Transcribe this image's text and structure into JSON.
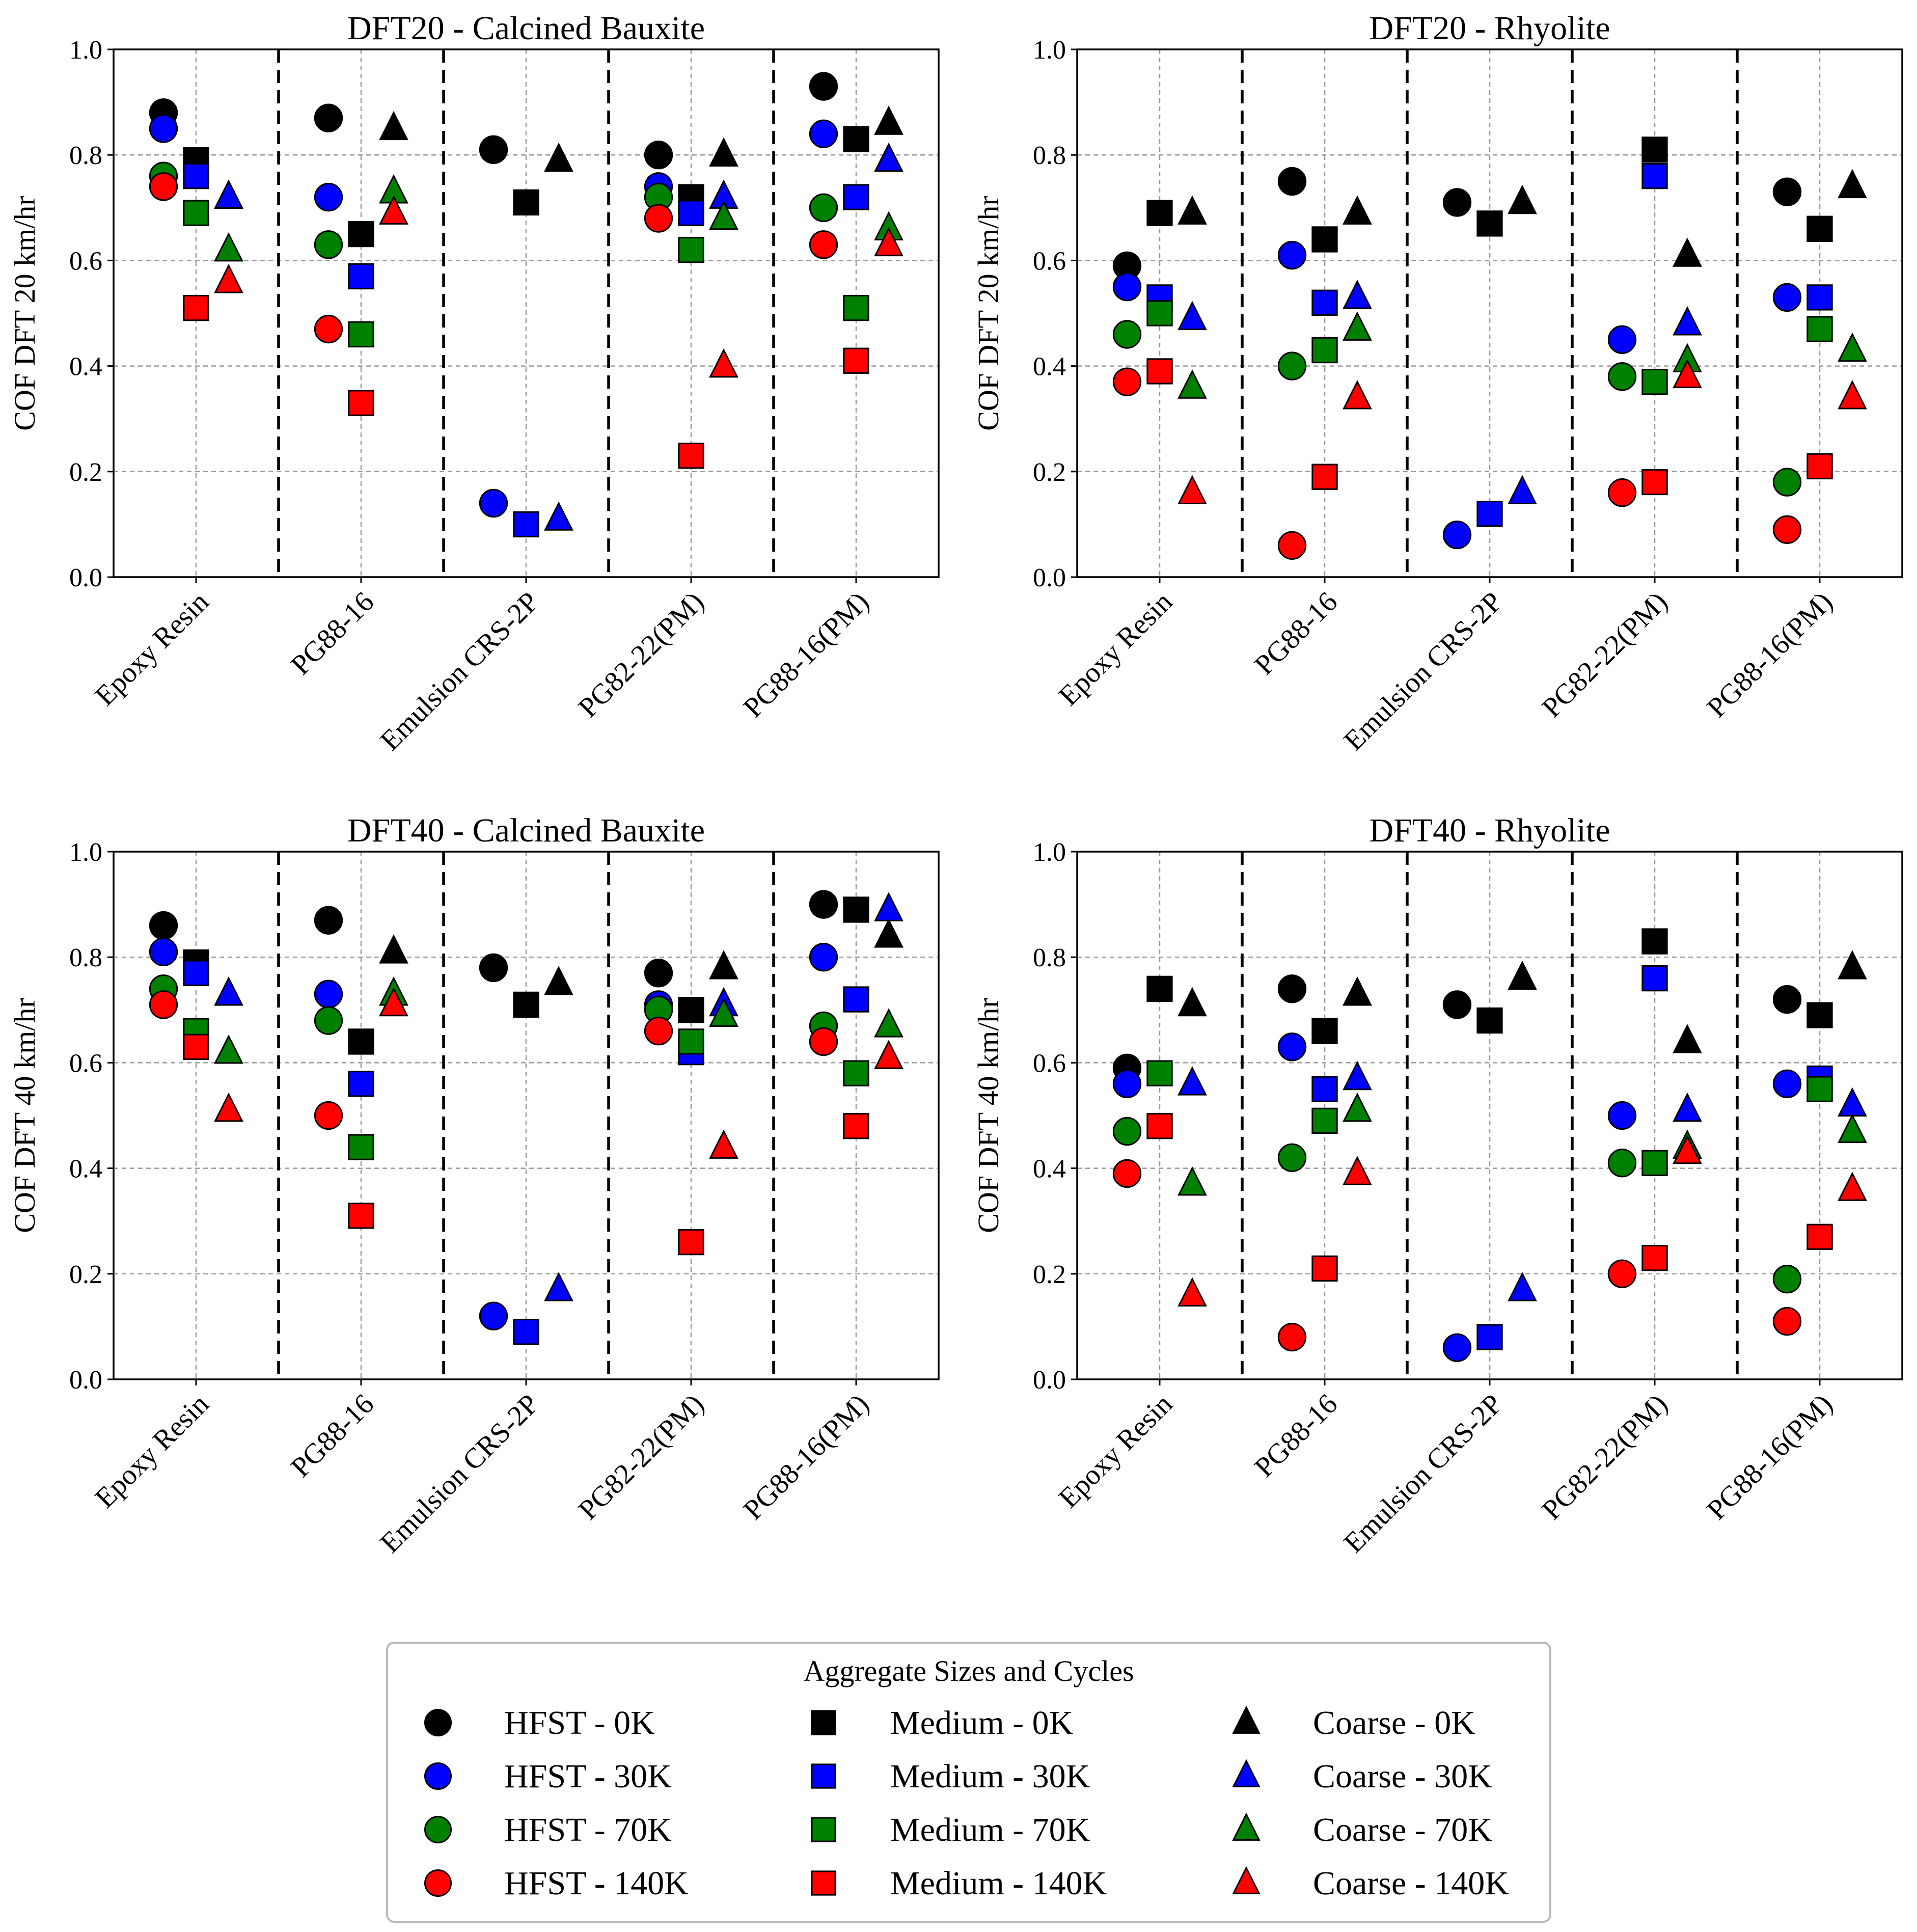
{
  "chart_data": [
    {
      "type": "scatter",
      "title": "DFT20 - Calcined Bauxite",
      "ylabel": "COF DFT 20 km/hr",
      "ylim": [
        0,
        1.0
      ],
      "yticks": [
        "0.0",
        "0.2",
        "0.4",
        "0.6",
        "0.8",
        "1.0"
      ],
      "categories": [
        "Epoxy Resin",
        "PG88-16",
        "Emulsion CRS-2P",
        "PG82-22(PM)",
        "PG88-16(PM)"
      ],
      "series": [
        {
          "name": "HFST - 0K",
          "values": [
            0.88,
            0.87,
            0.81,
            0.8,
            0.93
          ]
        },
        {
          "name": "HFST - 30K",
          "values": [
            0.85,
            0.72,
            0.14,
            0.74,
            0.84
          ]
        },
        {
          "name": "HFST - 70K",
          "values": [
            0.76,
            0.63,
            null,
            0.72,
            0.7
          ]
        },
        {
          "name": "HFST - 140K",
          "values": [
            0.74,
            0.47,
            null,
            0.68,
            0.63
          ]
        },
        {
          "name": "Medium - 0K",
          "values": [
            0.79,
            0.65,
            0.71,
            0.72,
            0.83
          ]
        },
        {
          "name": "Medium - 30K",
          "values": [
            0.76,
            0.57,
            0.1,
            0.69,
            0.72
          ]
        },
        {
          "name": "Medium - 70K",
          "values": [
            0.69,
            0.46,
            null,
            0.62,
            0.51
          ]
        },
        {
          "name": "Medium - 140K",
          "values": [
            0.51,
            0.33,
            null,
            0.23,
            0.41
          ]
        },
        {
          "name": "Coarse - 0K",
          "values": [
            0.72,
            0.85,
            0.79,
            0.8,
            0.86
          ]
        },
        {
          "name": "Coarse - 30K",
          "values": [
            0.72,
            null,
            0.11,
            0.72,
            0.79
          ]
        },
        {
          "name": "Coarse - 70K",
          "values": [
            0.62,
            0.73,
            null,
            0.68,
            0.66
          ]
        },
        {
          "name": "Coarse - 140K",
          "values": [
            0.56,
            0.69,
            null,
            0.4,
            0.63
          ]
        }
      ]
    },
    {
      "type": "scatter",
      "title": "DFT20 - Rhyolite",
      "ylabel": "COF DFT 20 km/hr",
      "ylim": [
        0,
        1.0
      ],
      "yticks": [
        "0.0",
        "0.2",
        "0.4",
        "0.6",
        "0.8",
        "1.0"
      ],
      "categories": [
        "Epoxy Resin",
        "PG88-16",
        "Emulsion CRS-2P",
        "PG82-22(PM)",
        "PG88-16(PM)"
      ],
      "series": [
        {
          "name": "HFST - 0K",
          "values": [
            0.59,
            0.75,
            0.71,
            null,
            0.73
          ]
        },
        {
          "name": "HFST - 30K",
          "values": [
            0.55,
            0.61,
            0.08,
            0.45,
            0.53
          ]
        },
        {
          "name": "HFST - 70K",
          "values": [
            0.46,
            0.4,
            null,
            0.38,
            0.18
          ]
        },
        {
          "name": "HFST - 140K",
          "values": [
            0.37,
            0.06,
            null,
            0.16,
            0.09
          ]
        },
        {
          "name": "Medium - 0K",
          "values": [
            0.69,
            0.64,
            0.67,
            0.81,
            0.66
          ]
        },
        {
          "name": "Medium - 30K",
          "values": [
            0.53,
            0.52,
            0.12,
            0.76,
            0.53
          ]
        },
        {
          "name": "Medium - 70K",
          "values": [
            0.5,
            0.43,
            null,
            0.37,
            0.47
          ]
        },
        {
          "name": "Medium - 140K",
          "values": [
            0.39,
            0.19,
            null,
            0.18,
            0.21
          ]
        },
        {
          "name": "Coarse - 0K",
          "values": [
            0.69,
            0.69,
            0.71,
            0.61,
            0.74
          ]
        },
        {
          "name": "Coarse - 30K",
          "values": [
            0.49,
            0.53,
            0.16,
            0.48,
            null
          ]
        },
        {
          "name": "Coarse - 70K",
          "values": [
            0.36,
            0.47,
            null,
            0.41,
            0.43
          ]
        },
        {
          "name": "Coarse - 140K",
          "values": [
            0.16,
            0.34,
            null,
            0.38,
            0.34
          ]
        }
      ]
    },
    {
      "type": "scatter",
      "title": "DFT40 - Calcined Bauxite",
      "ylabel": "COF DFT 40 km/hr",
      "ylim": [
        0,
        1.0
      ],
      "yticks": [
        "0.0",
        "0.2",
        "0.4",
        "0.6",
        "0.8",
        "1.0"
      ],
      "categories": [
        "Epoxy Resin",
        "PG88-16",
        "Emulsion CRS-2P",
        "PG82-22(PM)",
        "PG88-16(PM)"
      ],
      "series": [
        {
          "name": "HFST - 0K",
          "values": [
            0.86,
            0.87,
            0.78,
            0.77,
            0.9
          ]
        },
        {
          "name": "HFST - 30K",
          "values": [
            0.81,
            0.73,
            0.12,
            0.71,
            0.8
          ]
        },
        {
          "name": "HFST - 70K",
          "values": [
            0.74,
            0.68,
            null,
            0.7,
            0.67
          ]
        },
        {
          "name": "HFST - 140K",
          "values": [
            0.71,
            0.5,
            null,
            0.66,
            0.64
          ]
        },
        {
          "name": "Medium - 0K",
          "values": [
            0.79,
            0.64,
            0.71,
            0.7,
            0.89
          ]
        },
        {
          "name": "Medium - 30K",
          "values": [
            0.77,
            0.56,
            0.09,
            0.62,
            0.72
          ]
        },
        {
          "name": "Medium - 70K",
          "values": [
            0.66,
            0.44,
            null,
            0.64,
            0.58
          ]
        },
        {
          "name": "Medium - 140K",
          "values": [
            0.63,
            0.31,
            null,
            0.26,
            0.48
          ]
        },
        {
          "name": "Coarse - 0K",
          "values": [
            null,
            0.81,
            0.75,
            0.78,
            0.84
          ]
        },
        {
          "name": "Coarse - 30K",
          "values": [
            0.73,
            null,
            0.17,
            0.71,
            0.89
          ]
        },
        {
          "name": "Coarse - 70K",
          "values": [
            0.62,
            0.73,
            null,
            0.69,
            0.67
          ]
        },
        {
          "name": "Coarse - 140K",
          "values": [
            0.51,
            0.71,
            null,
            0.44,
            0.61
          ]
        }
      ]
    },
    {
      "type": "scatter",
      "title": "DFT40 - Rhyolite",
      "ylabel": "COF DFT 40 km/hr",
      "ylim": [
        0,
        1.0
      ],
      "yticks": [
        "0.0",
        "0.2",
        "0.4",
        "0.6",
        "0.8",
        "1.0"
      ],
      "categories": [
        "Epoxy Resin",
        "PG88-16",
        "Emulsion CRS-2P",
        "PG82-22(PM)",
        "PG88-16(PM)"
      ],
      "series": [
        {
          "name": "HFST - 0K",
          "values": [
            0.59,
            0.74,
            0.71,
            null,
            0.72
          ]
        },
        {
          "name": "HFST - 30K",
          "values": [
            0.56,
            0.63,
            0.06,
            0.5,
            0.56
          ]
        },
        {
          "name": "HFST - 70K",
          "values": [
            0.47,
            0.42,
            null,
            0.41,
            0.19
          ]
        },
        {
          "name": "HFST - 140K",
          "values": [
            0.39,
            0.08,
            null,
            0.2,
            0.11
          ]
        },
        {
          "name": "Medium - 0K",
          "values": [
            0.74,
            0.66,
            0.68,
            0.83,
            0.69
          ]
        },
        {
          "name": "Medium - 30K",
          "values": [
            null,
            0.55,
            0.08,
            0.76,
            0.57
          ]
        },
        {
          "name": "Medium - 70K",
          "values": [
            0.58,
            0.49,
            null,
            0.41,
            0.55
          ]
        },
        {
          "name": "Medium - 140K",
          "values": [
            0.48,
            0.21,
            null,
            0.23,
            0.27
          ]
        },
        {
          "name": "Coarse - 0K",
          "values": [
            0.71,
            0.73,
            0.76,
            0.64,
            0.78
          ]
        },
        {
          "name": "Coarse - 30K",
          "values": [
            0.56,
            0.57,
            0.17,
            0.51,
            0.52
          ]
        },
        {
          "name": "Coarse - 70K",
          "values": [
            0.37,
            0.51,
            null,
            0.44,
            0.47
          ]
        },
        {
          "name": "Coarse - 140K",
          "values": [
            0.16,
            0.39,
            null,
            0.43,
            0.36
          ]
        }
      ]
    }
  ],
  "legend": {
    "title": "Aggregate Sizes and Cycles",
    "entries": [
      {
        "label": "HFST - 0K",
        "shape": "circle",
        "color": "#000000"
      },
      {
        "label": "HFST - 30K",
        "shape": "circle",
        "color": "#0000ff"
      },
      {
        "label": "HFST - 70K",
        "shape": "circle",
        "color": "#008000"
      },
      {
        "label": "HFST - 140K",
        "shape": "circle",
        "color": "#ff0000"
      },
      {
        "label": "Medium - 0K",
        "shape": "square",
        "color": "#000000"
      },
      {
        "label": "Medium - 30K",
        "shape": "square",
        "color": "#0000ff"
      },
      {
        "label": "Medium - 70K",
        "shape": "square",
        "color": "#008000"
      },
      {
        "label": "Medium - 140K",
        "shape": "square",
        "color": "#ff0000"
      },
      {
        "label": "Coarse - 0K",
        "shape": "triangle",
        "color": "#000000"
      },
      {
        "label": "Coarse - 30K",
        "shape": "triangle",
        "color": "#0000ff"
      },
      {
        "label": "Coarse - 70K",
        "shape": "triangle",
        "color": "#008000"
      },
      {
        "label": "Coarse - 140K",
        "shape": "triangle",
        "color": "#ff0000"
      }
    ]
  },
  "colors": {
    "0K": "#000000",
    "30K": "#0000ff",
    "70K": "#008000",
    "140K": "#ff0000"
  }
}
